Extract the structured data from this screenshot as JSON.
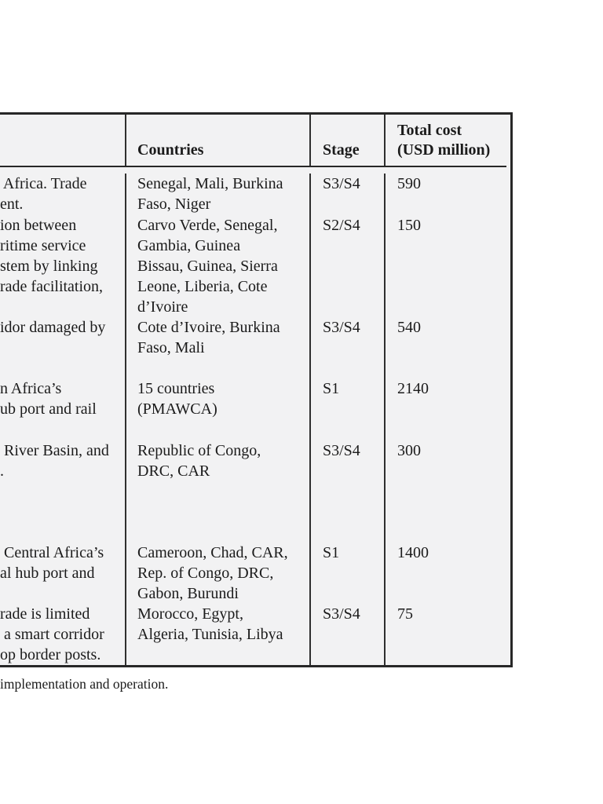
{
  "table": {
    "headers": {
      "description": "",
      "countries": "Countries",
      "stage": "Stage",
      "total_cost_line1": "Total cost",
      "total_cost_line2": "(USD million)"
    },
    "rows": [
      {
        "description_lines": [
          " Africa. Trade",
          "ent."
        ],
        "countries_lines": [
          "Senegal, Mali, Burkina",
          "Faso, Niger"
        ],
        "stage": "S3/S4",
        "total_cost": "590"
      },
      {
        "description_lines": [
          "ion between",
          "ritime service",
          "stem by linking",
          "rade facilitation,"
        ],
        "countries_lines": [
          "Carvo Verde, Senegal,",
          "Gambia, Guinea",
          "Bissau, Guinea, Sierra",
          "Leone, Liberia, Cote",
          "d’Ivoire"
        ],
        "stage": "S2/S4",
        "total_cost": "150"
      },
      {
        "description_lines": [
          "idor damaged by"
        ],
        "countries_lines": [
          "Cote d’Ivoire, Burkina",
          "Faso, Mali"
        ],
        "stage": "S3/S4",
        "total_cost": "540"
      },
      {
        "description_lines": [
          "n Africa’s",
          "ub port and rail"
        ],
        "countries_lines": [
          "15 countries",
          "(PMAWCA)"
        ],
        "stage": "S1",
        "total_cost": "2140"
      },
      {
        "description_lines": [
          " River Basin, and",
          "."
        ],
        "countries_lines": [
          "Republic of Congo,",
          "DRC, CAR"
        ],
        "stage": "S3/S4",
        "total_cost": "300"
      },
      {
        "description_lines": [
          " Central Africa’s",
          "al hub port and"
        ],
        "countries_lines": [
          "Cameroon, Chad, CAR,",
          "Rep. of Congo, DRC,",
          "Gabon, Burundi"
        ],
        "stage": "S1",
        "total_cost": "1400"
      },
      {
        "description_lines": [
          "rade is limited",
          " a smart corridor",
          "op border posts."
        ],
        "countries_lines": [
          "Morocco, Egypt,",
          "Algeria, Tunisia, Libya"
        ],
        "stage": "S3/S4",
        "total_cost": "75"
      }
    ]
  },
  "footnote": "implementation and operation."
}
